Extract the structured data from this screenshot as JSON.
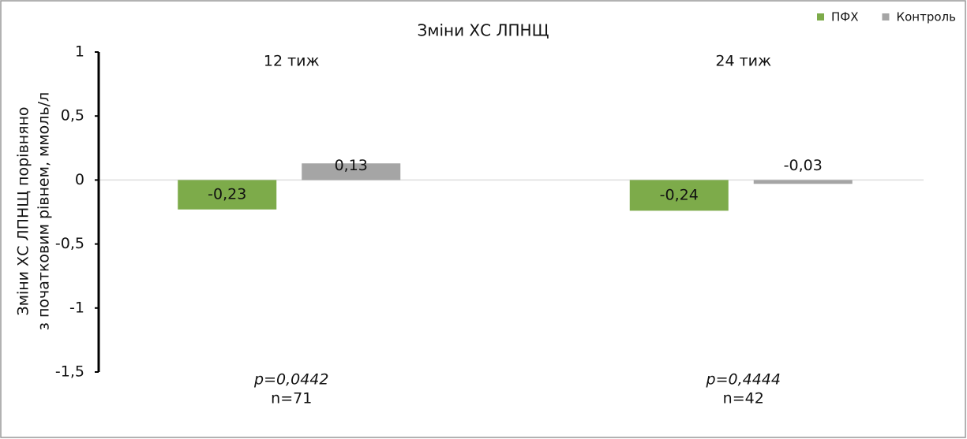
{
  "chart_data": {
    "type": "bar",
    "title": "Зміни ХС ЛПНЩ",
    "y_label": [
      "Зміни ХС ЛПНЩ порівняно",
      "з початковим рівнем, ммоль/л"
    ],
    "categories": [
      "12 тиж",
      "24 тиж"
    ],
    "series": [
      {
        "name": "ПФХ",
        "color": "#7dab4a",
        "values": [
          -0.23,
          -0.24
        ],
        "value_labels": [
          "-0,23",
          "-0,24"
        ]
      },
      {
        "name": "Контроль",
        "color": "#a5a5a5",
        "values": [
          0.13,
          -0.03
        ],
        "value_labels": [
          "0,13",
          "-0,03"
        ]
      }
    ],
    "ylim": [
      -1.5,
      1
    ],
    "yticks": [
      {
        "value": -1.5,
        "label": "-1,5"
      },
      -1,
      {
        "value": -0.5,
        "label": "-0,5"
      },
      0,
      {
        "value": 0.5,
        "label": "0,5"
      },
      1
    ],
    "annotations": [
      {
        "p": "p=0,0442",
        "n": "n=71"
      },
      {
        "p": "p=0,4444",
        "n": "n=42"
      }
    ],
    "legend": "top-right"
  }
}
